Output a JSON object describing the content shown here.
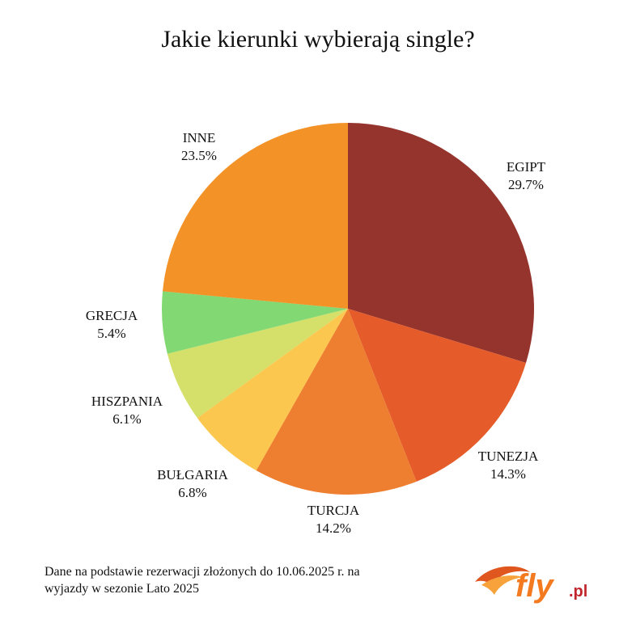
{
  "title": "Jakie kierunki wybierają single?",
  "footer": {
    "line1": "Dane na podstawie rezerwacji złożonych do 10.06.2025 r. na",
    "line2": "wyjazdy w sezonie Lato 2025"
  },
  "logo": {
    "text_main": "fly",
    "text_suffix": ".pl",
    "color_main": "#f47a20",
    "color_suffix": "#c0272d"
  },
  "chart_data": {
    "type": "pie",
    "title": "Jakie kierunki wybierają single?",
    "slices": [
      {
        "label": "EGIPT",
        "value": 29.7,
        "value_label": "29.7%",
        "color": "#94342c"
      },
      {
        "label": "TUNEZJA",
        "value": 14.3,
        "value_label": "14.3%",
        "color": "#e55c2a"
      },
      {
        "label": "TURCJA",
        "value": 14.2,
        "value_label": "14.2%",
        "color": "#ee7f30"
      },
      {
        "label": "BUŁGARIA",
        "value": 6.8,
        "value_label": "6.8%",
        "color": "#fcc74f"
      },
      {
        "label": "HISZPANIA",
        "value": 6.1,
        "value_label": "6.1%",
        "color": "#d4e06a"
      },
      {
        "label": "GRECJA",
        "value": 5.4,
        "value_label": "5.4%",
        "color": "#82d872"
      },
      {
        "label": "INNE",
        "value": 23.5,
        "value_label": "23.5%",
        "color": "#f39227"
      }
    ]
  }
}
